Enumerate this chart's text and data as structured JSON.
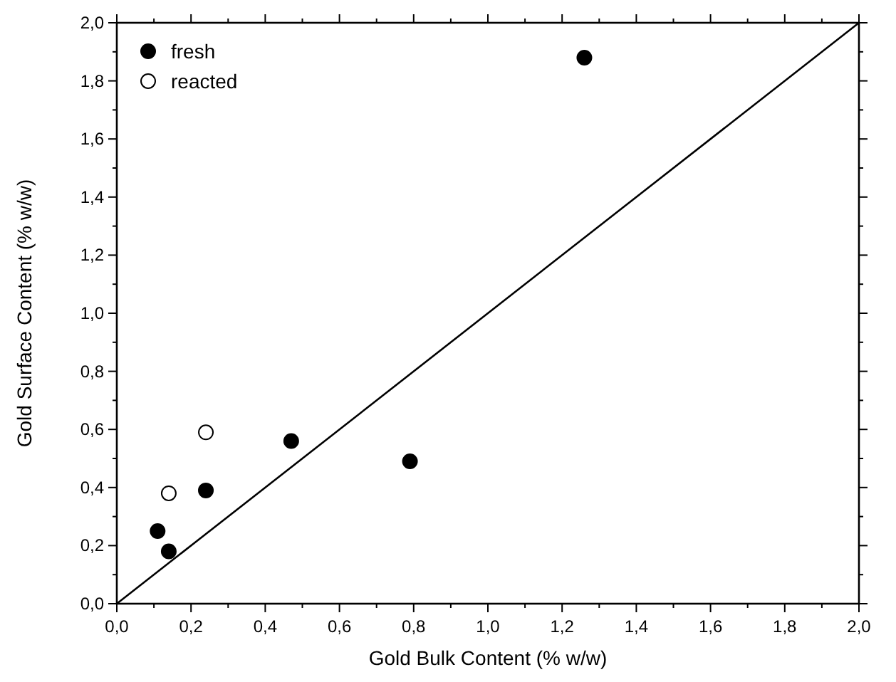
{
  "chart_data": {
    "type": "scatter",
    "xlabel": "Gold Bulk Content (% w/w)",
    "ylabel": "Gold Surface Content (% w/w)",
    "xlim": [
      0,
      2
    ],
    "ylim": [
      0,
      2
    ],
    "xticks": [
      {
        "value": 0,
        "label": "0,0"
      },
      {
        "value": 0.1,
        "label": null
      },
      {
        "value": 0.2,
        "label": "0,2"
      },
      {
        "value": 0.3,
        "label": null
      },
      {
        "value": 0.4,
        "label": "0,4"
      },
      {
        "value": 0.5,
        "label": null
      },
      {
        "value": 0.6,
        "label": "0,6"
      },
      {
        "value": 0.7,
        "label": null
      },
      {
        "value": 0.8,
        "label": "0,8"
      },
      {
        "value": 0.9,
        "label": null
      },
      {
        "value": 1,
        "label": "1,0"
      },
      {
        "value": 1.1,
        "label": null
      },
      {
        "value": 1.2,
        "label": "1,2"
      },
      {
        "value": 1.3,
        "label": null
      },
      {
        "value": 1.4,
        "label": "1,4"
      },
      {
        "value": 1.5,
        "label": null
      },
      {
        "value": 1.6,
        "label": "1,6"
      },
      {
        "value": 1.7,
        "label": null
      },
      {
        "value": 1.8,
        "label": "1,8"
      },
      {
        "value": 1.9,
        "label": null
      },
      {
        "value": 2,
        "label": "2,0"
      }
    ],
    "yticks": [
      {
        "value": 0,
        "label": "0,0"
      },
      {
        "value": 0.1,
        "label": null
      },
      {
        "value": 0.2,
        "label": "0,2"
      },
      {
        "value": 0.3,
        "label": null
      },
      {
        "value": 0.4,
        "label": "0,4"
      },
      {
        "value": 0.5,
        "label": null
      },
      {
        "value": 0.6,
        "label": "0,6"
      },
      {
        "value": 0.7,
        "label": null
      },
      {
        "value": 0.8,
        "label": "0,8"
      },
      {
        "value": 0.9,
        "label": null
      },
      {
        "value": 1,
        "label": "1,0"
      },
      {
        "value": 1.1,
        "label": null
      },
      {
        "value": 1.2,
        "label": "1,2"
      },
      {
        "value": 1.3,
        "label": null
      },
      {
        "value": 1.4,
        "label": "1,4"
      },
      {
        "value": 1.5,
        "label": null
      },
      {
        "value": 1.6,
        "label": "1,6"
      },
      {
        "value": 1.7,
        "label": null
      },
      {
        "value": 1.8,
        "label": "1,8"
      },
      {
        "value": 1.9,
        "label": null
      },
      {
        "value": 2,
        "label": "2,0"
      }
    ],
    "grid": false,
    "legend": "top left",
    "marker": "circle",
    "series": [
      {
        "name": "fresh",
        "color": "#000000",
        "x": [
          0.11,
          0.14,
          0.24,
          0.47,
          0.79,
          1.26
        ],
        "values": [
          0.25,
          0.18,
          0.39,
          0.56,
          0.49,
          1.88
        ]
      },
      {
        "name": "reacted",
        "color": "#ffffff",
        "x": [
          0.14,
          0.24
        ],
        "values": [
          0.38,
          0.59
        ]
      },
      {
        "type": "line",
        "color": "#000000",
        "x": [
          0,
          2
        ],
        "values": [
          0,
          2
        ],
        "marker": "none",
        "line_style": "solid"
      }
    ]
  }
}
